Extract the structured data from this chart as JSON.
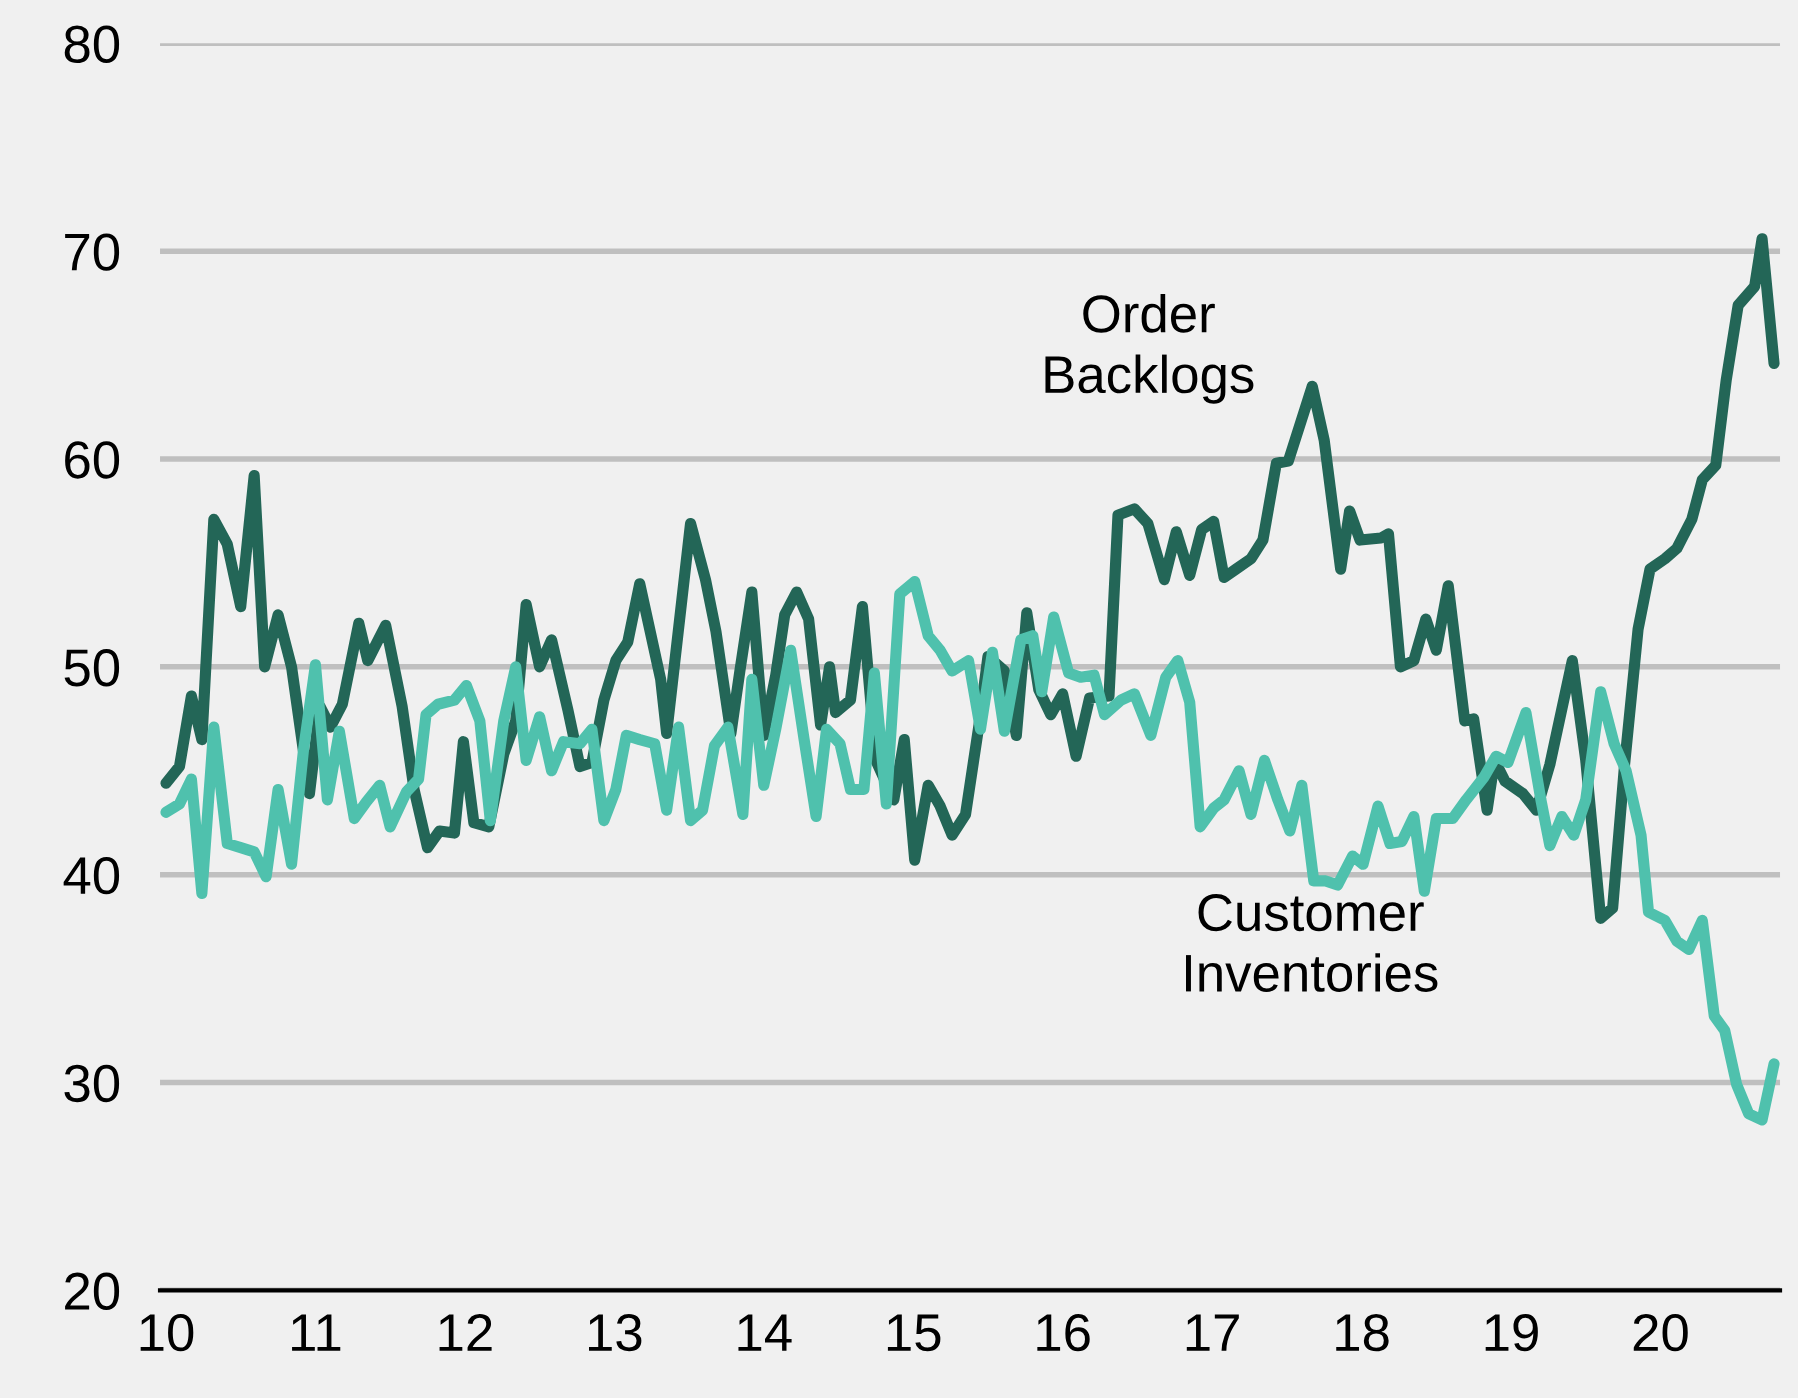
{
  "chart_data": {
    "type": "line",
    "xlim": [
      9.96,
      20.8
    ],
    "xticks": [
      10,
      11,
      12,
      13,
      14,
      15,
      16,
      17,
      18,
      19,
      20
    ],
    "ylim": [
      20,
      80
    ],
    "yticks": [
      20,
      30,
      40,
      50,
      60,
      70,
      80
    ],
    "grid": "y",
    "legend": false,
    "marker": "none",
    "line_style": "solid",
    "series": [
      {
        "name": "Order\nBacklogs",
        "color": "#236657",
        "x": [
          10.0,
          10.09,
          10.17,
          10.24,
          10.32,
          10.41,
          10.5,
          10.59,
          10.66,
          10.75,
          10.84,
          10.96,
          11.03,
          11.1,
          11.18,
          11.29,
          11.35,
          11.47,
          11.58,
          11.66,
          11.75,
          11.83,
          11.93,
          11.99,
          12.06,
          12.16,
          12.26,
          12.34,
          12.41,
          12.5,
          12.58,
          12.69,
          12.77,
          12.85,
          12.93,
          13.01,
          13.09,
          13.17,
          13.31,
          13.35,
          13.51,
          13.61,
          13.68,
          13.78,
          13.84,
          13.92,
          14.0,
          14.08,
          14.14,
          14.22,
          14.3,
          14.38,
          14.44,
          14.48,
          14.58,
          14.66,
          14.75,
          14.87,
          14.94,
          15.01,
          15.1,
          15.18,
          15.26,
          15.35,
          15.44,
          15.5,
          15.61,
          15.69,
          15.76,
          15.84,
          15.92,
          16.0,
          16.09,
          16.18,
          16.31,
          16.37,
          16.48,
          16.57,
          16.68,
          16.76,
          16.85,
          16.93,
          17.01,
          17.08,
          17.16,
          17.26,
          17.34,
          17.43,
          17.51,
          17.67,
          17.75,
          17.86,
          17.92,
          17.99,
          18.13,
          18.18,
          18.26,
          18.35,
          18.43,
          18.5,
          18.58,
          18.69,
          18.75,
          18.84,
          18.89,
          18.96,
          19.08,
          19.17,
          19.26,
          19.41,
          19.5,
          19.6,
          19.68,
          19.76,
          19.85,
          19.93,
          20.03,
          20.11,
          20.21,
          20.28,
          20.37,
          20.44,
          20.52,
          20.63,
          20.68,
          20.76
        ],
        "values": [
          44.4,
          45.2,
          48.6,
          46.5,
          57.1,
          55.9,
          52.9,
          59.2,
          50.0,
          52.5,
          50.0,
          43.9,
          48.1,
          47.1,
          48.2,
          52.1,
          50.3,
          52.0,
          48.1,
          44.1,
          41.3,
          42.1,
          42.0,
          46.4,
          42.5,
          42.3,
          45.8,
          47.4,
          53.0,
          50.0,
          51.3,
          47.9,
          45.2,
          45.4,
          48.4,
          50.3,
          51.2,
          54.0,
          49.4,
          46.8,
          56.9,
          54.2,
          51.7,
          46.8,
          49.8,
          53.6,
          46.7,
          49.6,
          52.5,
          53.6,
          52.3,
          47.2,
          50.0,
          47.8,
          48.4,
          52.9,
          45.5,
          43.6,
          46.5,
          40.7,
          44.3,
          43.3,
          41.9,
          42.9,
          47.2,
          50.5,
          49.8,
          46.7,
          52.6,
          48.9,
          47.7,
          48.7,
          45.7,
          48.5,
          48.6,
          57.3,
          57.6,
          56.9,
          54.2,
          56.5,
          54.4,
          56.6,
          57.0,
          54.3,
          54.7,
          55.2,
          56.1,
          59.8,
          59.9,
          63.5,
          60.9,
          54.7,
          57.5,
          56.1,
          56.2,
          56.4,
          50.0,
          50.3,
          52.3,
          50.8,
          53.9,
          47.4,
          47.5,
          43.1,
          45.5,
          44.5,
          43.9,
          43.1,
          45.3,
          50.3,
          45.5,
          37.9,
          38.4,
          45.3,
          51.8,
          54.7,
          55.2,
          55.7,
          57.1,
          59.0,
          59.7,
          63.8,
          67.4,
          68.3,
          70.6,
          64.6
        ]
      },
      {
        "name": "Customer\nInventories",
        "color": "#4fc1ad",
        "x": [
          10.0,
          10.09,
          10.17,
          10.24,
          10.32,
          10.41,
          10.5,
          10.59,
          10.67,
          10.75,
          10.84,
          10.92,
          11.0,
          11.08,
          11.16,
          11.26,
          11.34,
          11.43,
          11.5,
          11.61,
          11.69,
          11.74,
          11.82,
          11.93,
          12.01,
          12.1,
          12.17,
          12.26,
          12.34,
          12.41,
          12.5,
          12.58,
          12.66,
          12.77,
          12.85,
          12.93,
          13.01,
          13.08,
          13.17,
          13.27,
          13.35,
          13.43,
          13.51,
          13.59,
          13.67,
          13.76,
          13.86,
          13.92,
          14.0,
          14.08,
          14.18,
          14.27,
          14.35,
          14.42,
          14.51,
          14.58,
          14.67,
          14.74,
          14.82,
          14.91,
          15.01,
          15.1,
          15.18,
          15.26,
          15.37,
          15.45,
          15.53,
          15.61,
          15.72,
          15.8,
          15.86,
          15.94,
          16.04,
          16.12,
          16.21,
          16.28,
          16.39,
          16.48,
          16.59,
          16.69,
          16.77,
          16.85,
          16.92,
          17.01,
          17.08,
          17.18,
          17.26,
          17.35,
          17.44,
          17.52,
          17.6,
          17.68,
          17.76,
          17.84,
          17.94,
          18.01,
          18.11,
          18.19,
          18.27,
          18.35,
          18.42,
          18.5,
          18.61,
          18.7,
          18.82,
          18.9,
          18.98,
          19.1,
          19.2,
          19.26,
          19.34,
          19.42,
          19.5,
          19.6,
          19.69,
          19.77,
          19.87,
          19.92,
          20.03,
          20.11,
          20.19,
          20.28,
          20.36,
          20.43,
          20.51,
          20.59,
          20.68,
          20.76
        ],
        "values": [
          43.0,
          43.4,
          44.6,
          39.1,
          47.1,
          41.5,
          41.3,
          41.1,
          39.9,
          44.1,
          40.5,
          46.0,
          50.1,
          43.6,
          46.9,
          42.7,
          43.5,
          44.3,
          42.3,
          44.0,
          44.6,
          47.7,
          48.2,
          48.4,
          49.1,
          47.4,
          42.6,
          47.4,
          50.0,
          45.5,
          47.6,
          45.0,
          46.4,
          46.3,
          47.0,
          42.6,
          44.1,
          46.7,
          46.5,
          46.3,
          43.1,
          47.1,
          42.6,
          43.1,
          46.2,
          47.1,
          42.9,
          49.4,
          44.3,
          47.0,
          50.8,
          46.5,
          42.8,
          47.0,
          46.3,
          44.1,
          44.1,
          49.7,
          43.4,
          53.5,
          54.1,
          51.5,
          50.8,
          49.8,
          50.3,
          47.0,
          50.7,
          46.9,
          51.3,
          51.5,
          48.8,
          52.4,
          49.7,
          49.5,
          49.6,
          47.7,
          48.4,
          48.7,
          46.7,
          49.5,
          50.3,
          48.3,
          42.3,
          43.2,
          43.6,
          45.0,
          42.9,
          45.5,
          43.6,
          42.1,
          44.3,
          39.7,
          39.7,
          39.5,
          40.9,
          40.5,
          43.3,
          41.5,
          41.6,
          42.8,
          39.2,
          42.7,
          42.7,
          43.6,
          44.7,
          45.7,
          45.4,
          47.8,
          43.6,
          41.4,
          42.8,
          41.9,
          43.6,
          48.8,
          46.3,
          45.0,
          41.9,
          38.2,
          37.8,
          36.8,
          36.4,
          37.8,
          33.2,
          32.5,
          29.9,
          28.5,
          28.2,
          30.9
        ]
      }
    ]
  }
}
